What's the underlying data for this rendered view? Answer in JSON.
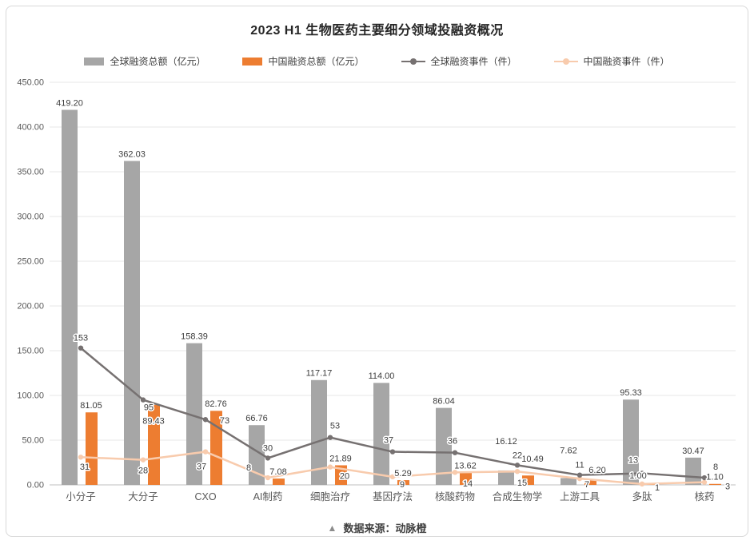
{
  "chart_data": {
    "type": "bar",
    "subtype": "combo-bar-line",
    "title": "2023 H1 生物医药主要细分领域投融资概况",
    "categories": [
      "小分子",
      "大分子",
      "CXO",
      "AI制药",
      "细胞治疗",
      "基因疗法",
      "核酸药物",
      "合成生物学",
      "上游工具",
      "多肽",
      "核药"
    ],
    "series": [
      {
        "name": "全球融资总额（亿元）",
        "type": "bar",
        "color": "#a6a6a6",
        "values": [
          419.2,
          362.03,
          158.39,
          66.76,
          117.17,
          114.0,
          86.04,
          16.12,
          7.62,
          95.33,
          30.47
        ]
      },
      {
        "name": "中国融资总额（亿元）",
        "type": "bar",
        "color": "#ed7d31",
        "values": [
          81.05,
          89.43,
          82.76,
          7.08,
          21.89,
          5.29,
          13.62,
          10.49,
          6.2,
          1.0,
          1.1
        ]
      },
      {
        "name": "全球融资事件（件）",
        "type": "line",
        "color": "#767171",
        "values": [
          153,
          95,
          73,
          30,
          53,
          37,
          36,
          22,
          11,
          13,
          8
        ]
      },
      {
        "name": "中国融资事件（件）",
        "type": "line",
        "color": "#f8cbad",
        "values": [
          31,
          28,
          37,
          8,
          20,
          9,
          14,
          15,
          7,
          1,
          3
        ]
      }
    ],
    "y_axis": {
      "min": 0,
      "max": 450,
      "step": 50,
      "tick_decimals": 2
    },
    "grid": true,
    "legend_position": "top",
    "value_label_decimals": {
      "bar": 2,
      "line": 0
    }
  },
  "footer": {
    "marker": "▲",
    "text": "数据来源：动脉橙"
  },
  "colors": {
    "global_bar": "#a6a6a6",
    "china_bar": "#ed7d31",
    "global_line": "#767171",
    "china_line": "#f8cbad",
    "gridline": "#e7e7e7",
    "axis_line": "#bfbfbf",
    "label_text": "#3d3d3d"
  }
}
